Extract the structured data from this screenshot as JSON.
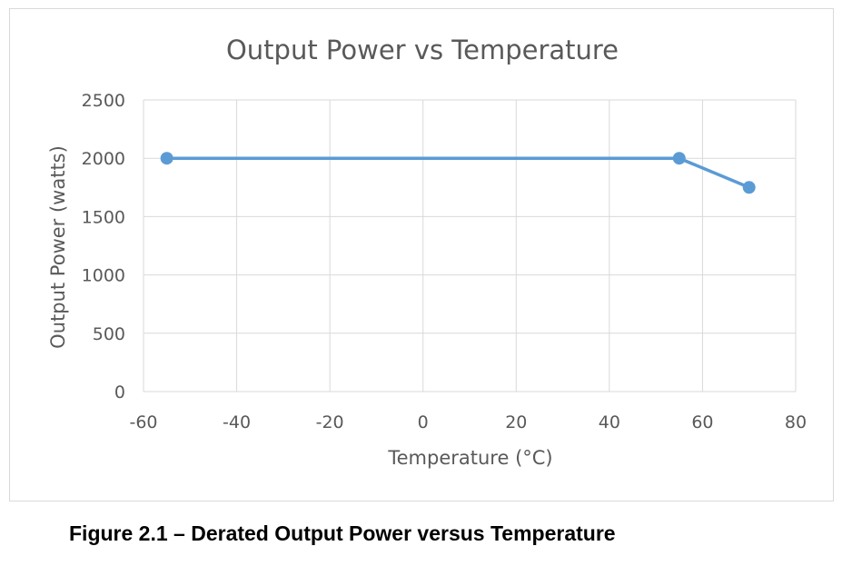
{
  "chart_data": {
    "type": "line",
    "title": "Output Power vs Temperature",
    "xlabel": "Temperature (°C)",
    "ylabel": "Output Power (watts)",
    "xlim": [
      -60,
      80
    ],
    "ylim": [
      0,
      2500
    ],
    "xticks": [
      "-60",
      "-40",
      "-20",
      "0",
      "20",
      "40",
      "60",
      "80"
    ],
    "yticks": [
      "0",
      "500",
      "1000",
      "1500",
      "2000",
      "2500"
    ],
    "grid": true,
    "legend": "none",
    "series": [
      {
        "color": "#5b9bd5",
        "x": [
          -55,
          55,
          70
        ],
        "y": [
          2000,
          2000,
          1750
        ]
      }
    ]
  },
  "caption": "Figure 2.1 – Derated Output Power versus Temperature"
}
